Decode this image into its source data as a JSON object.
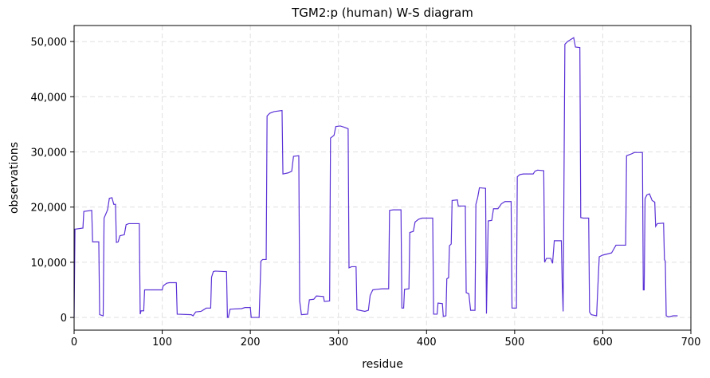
{
  "chart_data": {
    "type": "line",
    "title": "TGM2:p (human) W-S diagram",
    "x_label": "residue",
    "y_label": "observations",
    "xlim": [
      0,
      700
    ],
    "ylim": [
      -2300,
      52900
    ],
    "xticks": [
      0,
      100,
      200,
      300,
      400,
      500,
      600,
      700
    ],
    "yticks": [
      0,
      {
        "value": 10000,
        "label": "10,000"
      },
      {
        "value": 20000,
        "label": "20,000"
      },
      {
        "value": 30000,
        "label": "30,000"
      },
      {
        "value": 40000,
        "label": "40,000"
      },
      {
        "value": 50000,
        "label": "50,000"
      }
    ],
    "grid": true,
    "series": [
      {
        "color": "#5a31d6",
        "x": [
          0,
          1,
          10,
          11,
          20,
          21,
          28,
          29,
          33,
          34,
          38,
          40,
          43,
          45,
          47,
          48,
          50,
          52,
          57,
          59,
          62,
          74,
          75,
          76,
          79,
          80,
          100,
          101,
          105,
          108,
          116,
          117,
          133,
          135,
          138,
          144,
          150,
          155,
          156,
          158,
          160,
          173,
          174,
          175,
          177,
          190,
          194,
          200,
          201,
          210,
          212,
          214,
          218,
          219,
          222,
          227,
          236,
          237,
          243,
          247,
          249,
          255,
          256,
          258,
          265,
          267,
          272,
          275,
          283,
          284,
          290,
          291,
          295,
          297,
          302,
          306,
          311,
          312,
          315,
          320,
          321,
          330,
          334,
          336,
          339,
          343,
          350,
          357,
          358,
          362,
          371,
          372,
          374,
          375,
          380,
          381,
          385,
          387,
          391,
          395,
          407,
          408,
          412,
          413,
          418,
          419,
          422,
          423,
          425,
          426,
          428,
          429,
          435,
          436,
          444,
          445,
          448,
          450,
          455,
          456,
          458,
          460,
          467,
          468,
          470,
          474,
          476,
          481,
          485,
          489,
          496,
          497,
          502,
          503,
          506,
          510,
          521,
          523,
          526,
          533,
          534,
          536,
          541,
          543,
          545,
          553,
          554,
          555,
          557,
          560,
          565,
          567,
          569,
          574,
          575,
          578,
          584,
          585,
          587,
          590,
          593,
          594,
          596,
          600,
          605,
          610,
          615,
          626,
          627,
          632,
          636,
          645,
          646,
          647,
          648,
          650,
          653,
          656,
          659,
          660,
          662,
          669,
          670,
          671,
          672,
          675,
          680,
          685
        ],
        "values": [
          0,
          16000,
          16200,
          19200,
          19400,
          13700,
          13700,
          500,
          300,
          18000,
          19500,
          21600,
          21700,
          20500,
          20500,
          13600,
          13700,
          14800,
          15000,
          16800,
          17000,
          17000,
          600,
          1200,
          1200,
          5000,
          5000,
          5700,
          6200,
          6300,
          6300,
          600,
          500,
          300,
          1000,
          1100,
          1700,
          1700,
          7300,
          8300,
          8400,
          8300,
          0,
          0,
          1500,
          1600,
          1800,
          1800,
          0,
          0,
          10200,
          10500,
          10500,
          36500,
          37000,
          37300,
          37500,
          26000,
          26200,
          26500,
          29200,
          29300,
          3000,
          500,
          600,
          3200,
          3300,
          3900,
          3800,
          2900,
          3000,
          32500,
          33000,
          34600,
          34700,
          34500,
          34200,
          9000,
          9200,
          9200,
          1400,
          1100,
          1300,
          4000,
          5000,
          5100,
          5200,
          5200,
          19400,
          19500,
          19500,
          1700,
          1700,
          5100,
          5200,
          15400,
          15600,
          17300,
          17800,
          18000,
          18000,
          600,
          600,
          2600,
          2500,
          200,
          300,
          7000,
          7200,
          13000,
          13300,
          21200,
          21300,
          20200,
          20200,
          4500,
          4300,
          1300,
          1300,
          20500,
          21700,
          23500,
          23400,
          700,
          17500,
          17600,
          19700,
          19700,
          20600,
          21000,
          21000,
          1700,
          1700,
          25500,
          25900,
          26000,
          26000,
          26500,
          26700,
          26600,
          10000,
          10700,
          10700,
          9800,
          13900,
          13900,
          6000,
          1100,
          49500,
          50000,
          50500,
          50700,
          49000,
          48900,
          18100,
          18000,
          18000,
          1000,
          500,
          400,
          300,
          4000,
          11000,
          11300,
          11500,
          11700,
          13100,
          13100,
          29300,
          29600,
          29900,
          29900,
          5000,
          5000,
          21500,
          22200,
          22400,
          21200,
          20900,
          16500,
          17000,
          17100,
          10500,
          10200,
          300,
          100,
          300,
          300
        ]
      }
    ]
  }
}
